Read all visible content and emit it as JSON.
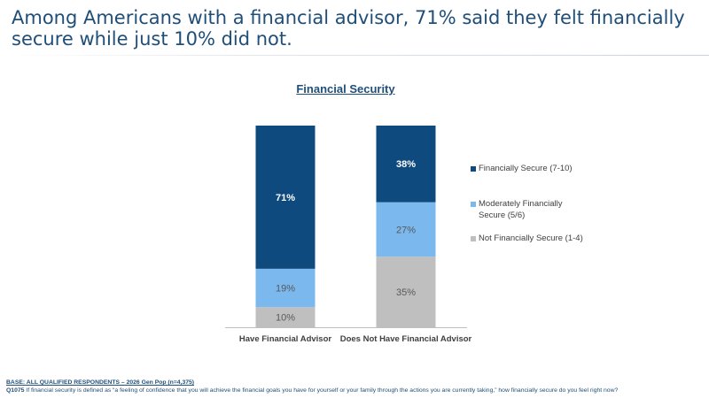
{
  "headline": "Among Americans with a financial advisor, 71% said they felt financially secure while just 10% did not.",
  "chart_data": {
    "type": "bar",
    "stacked": true,
    "title": "Financial Security",
    "categories": [
      "Have Financial Advisor",
      "Does Not Have Financial Advisor"
    ],
    "series": [
      {
        "name": "Not Financially Secure (1-4)",
        "values": [
          10,
          35
        ],
        "labels": [
          "10%",
          "35%"
        ],
        "color": "#bfbfbf",
        "label_color": "#595959"
      },
      {
        "name": "Moderately Financially Secure (5/6)",
        "values": [
          19,
          27
        ],
        "labels": [
          "19%",
          "27%"
        ],
        "color": "#7ab8ee",
        "label_color": "#595959"
      },
      {
        "name": "Financially Secure (7-10)",
        "values": [
          71,
          38
        ],
        "labels": [
          "71%",
          "38%"
        ],
        "color": "#0f4a7e",
        "label_color": "#ffffff"
      }
    ],
    "ylim": [
      0,
      100
    ],
    "grid": false,
    "legend_position": "right"
  },
  "legend": [
    {
      "label": "Financially Secure (7-10)",
      "color": "#0f4a7e"
    },
    {
      "label": "Moderately Financially Secure (5/6)",
      "color": "#7ab8ee"
    },
    {
      "label": "Not Financially Secure (1-4)",
      "color": "#bfbfbf"
    }
  ],
  "footnote": {
    "base": "BASE: ALL QUALIFIED RESPONDENTS – 2026 Gen Pop (n=4,375)",
    "question_id": "Q1075",
    "question_text": " If financial security is defined as “a feeling of confidence that you will achieve the financial goals you have for yourself or your family through the actions you are currently taking,” how financially secure do you feel right now?"
  }
}
